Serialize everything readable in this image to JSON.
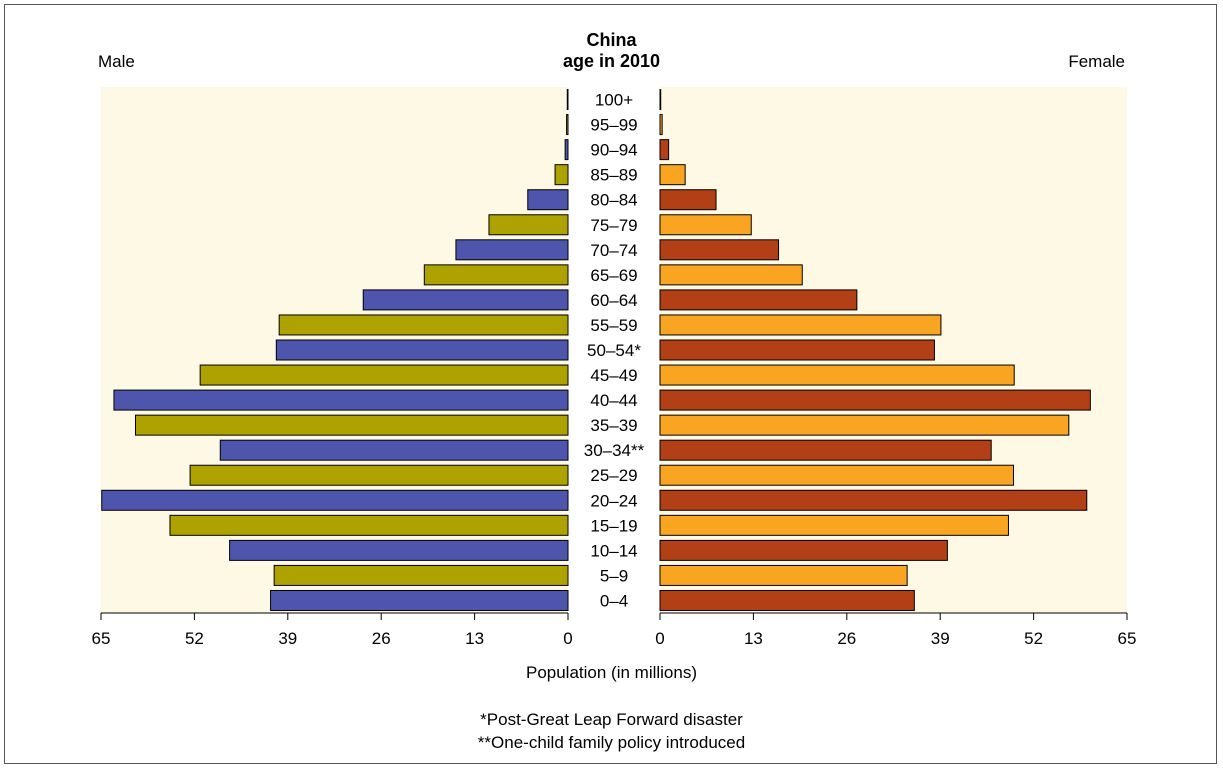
{
  "chart_data": {
    "type": "bar",
    "title": "China",
    "subtitle": "age in 2010",
    "left_label": "Male",
    "right_label": "Female",
    "xlabel": "Population (in millions)",
    "xlim": [
      0,
      65
    ],
    "xticks": [
      "65",
      "52",
      "39",
      "26",
      "13",
      "0",
      "0",
      "13",
      "26",
      "39",
      "52",
      "65"
    ],
    "categories": [
      "0–4",
      "5–9",
      "10–14",
      "15–19",
      "20–24",
      "25–29",
      "30–34**",
      "35–39",
      "40–44",
      "45–49",
      "50–54*",
      "55–59",
      "60–64",
      "65–69",
      "70–74",
      "75–79",
      "80–84",
      "85–89",
      "90–94",
      "95–99",
      "100+"
    ],
    "series": [
      {
        "name": "Male",
        "values": [
          41.4,
          40.9,
          47.1,
          55.4,
          64.9,
          52.6,
          48.4,
          60.2,
          63.2,
          51.2,
          40.6,
          40.2,
          28.5,
          20.0,
          15.6,
          11.0,
          5.6,
          1.8,
          0.4,
          0.2,
          0.1
        ]
      },
      {
        "name": "Female",
        "values": [
          35.4,
          34.4,
          40.0,
          48.5,
          59.4,
          49.2,
          46.1,
          56.9,
          59.9,
          49.3,
          38.2,
          39.1,
          27.4,
          19.8,
          16.5,
          12.7,
          7.8,
          3.5,
          1.2,
          0.3,
          0.1
        ]
      }
    ],
    "colors": {
      "male_a": "#4e55ac",
      "male_b": "#ada200",
      "female_a": "#b23f16",
      "female_b": "#f9a522",
      "panel_bg": "#fef9e4"
    },
    "grid": false
  },
  "notes": {
    "note1": "*Post-Great Leap Forward disaster",
    "note2": "**One-child family policy introduced"
  }
}
